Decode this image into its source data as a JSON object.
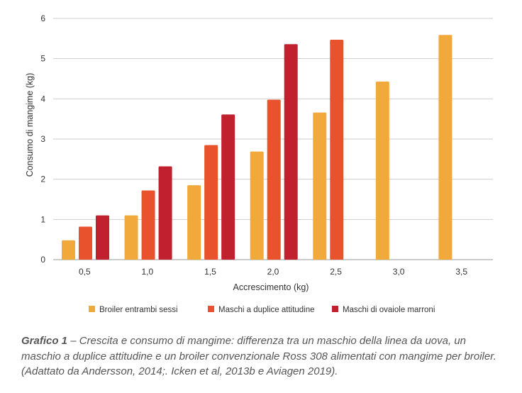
{
  "chart_data": {
    "type": "bar",
    "categories": [
      "0,5",
      "1,0",
      "1,5",
      "2,0",
      "2,5",
      "3,0",
      "3,5"
    ],
    "series": [
      {
        "name": "Broiler entrambi sessi",
        "color": "#F2A93B",
        "values": [
          0.48,
          1.1,
          1.85,
          2.69,
          3.66,
          4.43,
          5.59
        ]
      },
      {
        "name": "Maschi a duplice attitudine",
        "color": "#E8532D",
        "values": [
          0.82,
          1.72,
          2.85,
          3.98,
          5.47,
          null,
          null
        ]
      },
      {
        "name": "Maschi di ovaiole marroni",
        "color": "#C1202F",
        "values": [
          1.1,
          2.32,
          3.61,
          5.36,
          null,
          null,
          null
        ]
      }
    ],
    "xlabel": "Accrescimento (kg)",
    "ylabel": "Consumo di mangime  (kg)",
    "ylim": [
      0,
      6
    ],
    "yticks": [
      "0",
      "1",
      "2",
      "3",
      "4",
      "5",
      "6"
    ],
    "grid": "horizontal",
    "legend": "bottom"
  },
  "caption": {
    "label": "Grafico 1",
    "dash": " – ",
    "text": "Crescita e consumo di mangime: differenza tra un maschio della linea da uova, un maschio a duplice attitudine e un broiler convenzionale Ross 308 alimentati con mangime per broiler. (Adattato da Andersson, 2014;. Icken et al, 2013b e Aviagen 2019)."
  }
}
